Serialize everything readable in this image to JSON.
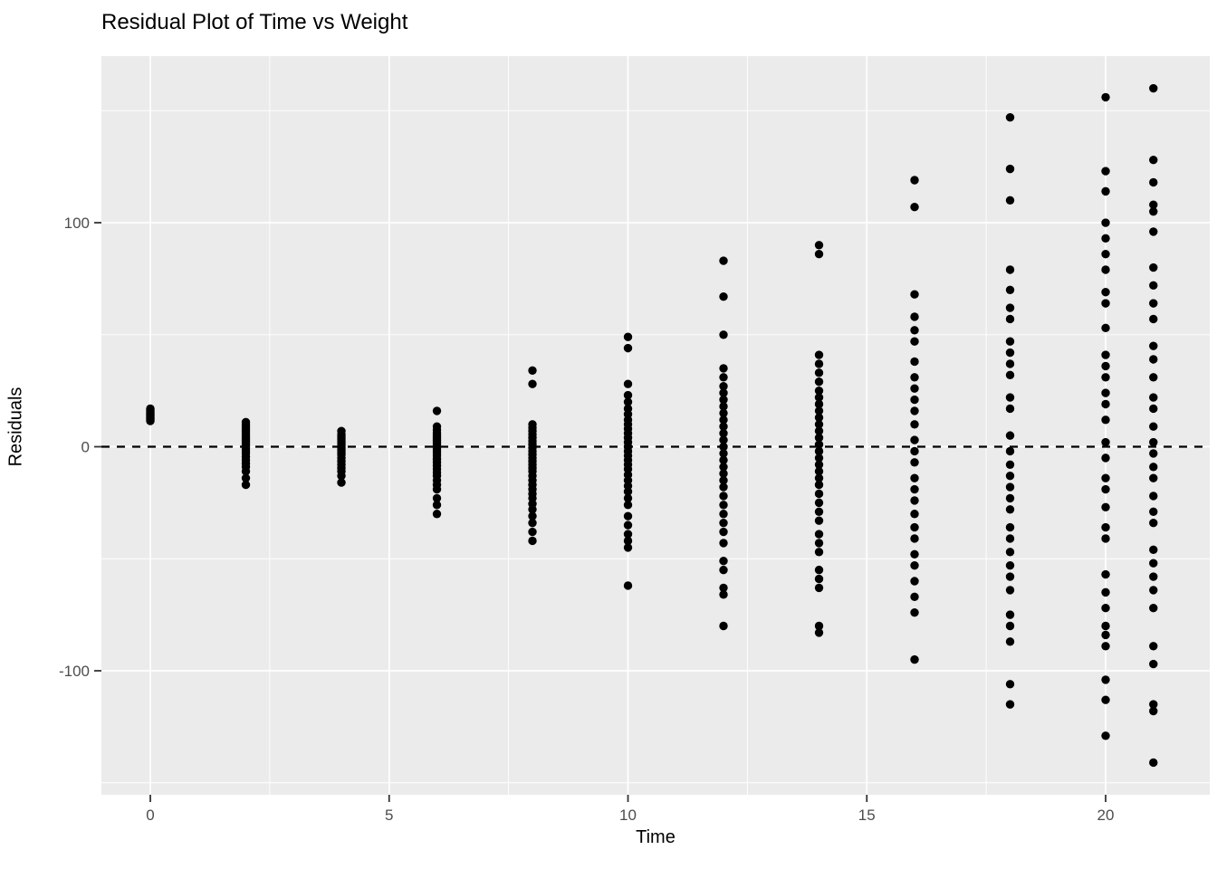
{
  "title": "Residual Plot of Time vs Weight",
  "colors": {
    "panel_background": "#EBEBEB",
    "grid": "#FFFFFF",
    "point": "#000000",
    "tick_label": "#4D4D4D",
    "tick_mark": "#333333",
    "axis_text": "#000000",
    "reference_line": "#000000"
  },
  "chart_data": {
    "type": "scatter",
    "title": "Residual Plot of Time vs Weight",
    "xlabel": "Time",
    "ylabel": "Residuals",
    "xlim": [
      -1.024,
      22.18
    ],
    "ylim": [
      -155.35,
      174.35
    ],
    "x_major_ticks": [
      0,
      5,
      10,
      15,
      20
    ],
    "x_minor_ticks": [
      2.5,
      7.5,
      12.5,
      17.5
    ],
    "y_major_ticks": [
      100,
      0,
      -100
    ],
    "y_minor_ticks": [
      150,
      50,
      -50,
      -150
    ],
    "grid": true,
    "legend": "none",
    "reference_line": {
      "type": "hline",
      "y": 0,
      "style": "dashed"
    },
    "series": [
      {
        "time": 0,
        "residuals": [
          11.5,
          12,
          12.5,
          13,
          13.5,
          14,
          14.5,
          15,
          15.5,
          16,
          16.5,
          17
        ]
      },
      {
        "time": 2,
        "residuals": [
          11,
          10,
          9,
          8,
          7,
          6,
          5,
          4,
          3,
          2,
          1,
          0,
          -1,
          -2,
          -3,
          -4.5,
          -6,
          -7.5,
          -9,
          -11,
          -14,
          -17
        ]
      },
      {
        "time": 4,
        "residuals": [
          7,
          5.5,
          4.5,
          3.5,
          2.5,
          1.5,
          0.5,
          -0.5,
          -1.5,
          -2.5,
          -3.5,
          -5,
          -6.5,
          -8,
          -9.5,
          -11,
          -13,
          -16
        ]
      },
      {
        "time": 6,
        "residuals": [
          16,
          9,
          7.5,
          6,
          5,
          4,
          3,
          2,
          1,
          0,
          -1,
          -2,
          -3,
          -4,
          -5.5,
          -7,
          -8.5,
          -10,
          -11.5,
          -13,
          -15,
          -17,
          -19,
          -23,
          -26,
          -30
        ]
      },
      {
        "time": 8,
        "residuals": [
          34,
          28,
          10,
          8.5,
          7,
          5.5,
          4,
          2.5,
          1,
          -0.5,
          -2,
          -3.5,
          -5,
          -6.5,
          -8,
          -9.5,
          -11,
          -13,
          -15,
          -17,
          -19,
          -21,
          -23,
          -25.5,
          -28,
          -31,
          -34,
          -38,
          -42
        ]
      },
      {
        "time": 10,
        "residuals": [
          49,
          44,
          28,
          23,
          20,
          17,
          14.5,
          12,
          10,
          8,
          6,
          4,
          2,
          0,
          -2,
          -4,
          -6,
          -8,
          -10,
          -12.5,
          -15,
          -17.5,
          -20,
          -23,
          -26,
          -31,
          -35,
          -39,
          -42,
          -45,
          -62
        ]
      },
      {
        "time": 12,
        "residuals": [
          83,
          67,
          50,
          35,
          31,
          27,
          24,
          21,
          18,
          15,
          12,
          9,
          6,
          3,
          0,
          -3,
          -6,
          -9,
          -12,
          -15,
          -18,
          -22,
          -26,
          -30,
          -34,
          -38,
          -43,
          -51,
          -55,
          -63,
          -66,
          -80
        ]
      },
      {
        "time": 14,
        "residuals": [
          90,
          86,
          41,
          37,
          33,
          29,
          25,
          22,
          19,
          16,
          13,
          10,
          7,
          4,
          1,
          -2,
          -5,
          -8,
          -11,
          -14,
          -17,
          -21,
          -25,
          -29,
          -33,
          -39,
          -43,
          -47,
          -55,
          -59,
          -63,
          -80,
          -83
        ]
      },
      {
        "time": 16,
        "residuals": [
          119,
          107,
          68,
          58,
          52,
          47,
          38,
          31,
          26,
          21,
          16,
          10,
          3,
          -2,
          -7,
          -14,
          -19,
          -24,
          -30,
          -36,
          -41,
          -48,
          -53,
          -60,
          -67,
          -74,
          -95
        ]
      },
      {
        "time": 18,
        "residuals": [
          147,
          124,
          110,
          79,
          70,
          62,
          57,
          47,
          42,
          37,
          32,
          22,
          17,
          5,
          -2,
          -8,
          -13,
          -18,
          -23,
          -28,
          -36,
          -41,
          -47,
          -53,
          -58,
          -64,
          -75,
          -80,
          -87,
          -106,
          -115
        ]
      },
      {
        "time": 20,
        "residuals": [
          156,
          123,
          114,
          100,
          93,
          86,
          79,
          69,
          64,
          53,
          41,
          36,
          31,
          24,
          19,
          12,
          2,
          -5,
          -14,
          -19,
          -27,
          -36,
          -41,
          -57,
          -65,
          -72,
          -80,
          -84,
          -89,
          -104,
          -113,
          -129
        ]
      },
      {
        "time": 21,
        "residuals": [
          160,
          128,
          118,
          108,
          105,
          96,
          80,
          72,
          64,
          57,
          45,
          39,
          31,
          22,
          17,
          9,
          2,
          -3,
          -9,
          -14,
          -22,
          -29,
          -34,
          -46,
          -52,
          -58,
          -64,
          -72,
          -89,
          -97,
          -115,
          -118,
          -141
        ]
      }
    ]
  }
}
